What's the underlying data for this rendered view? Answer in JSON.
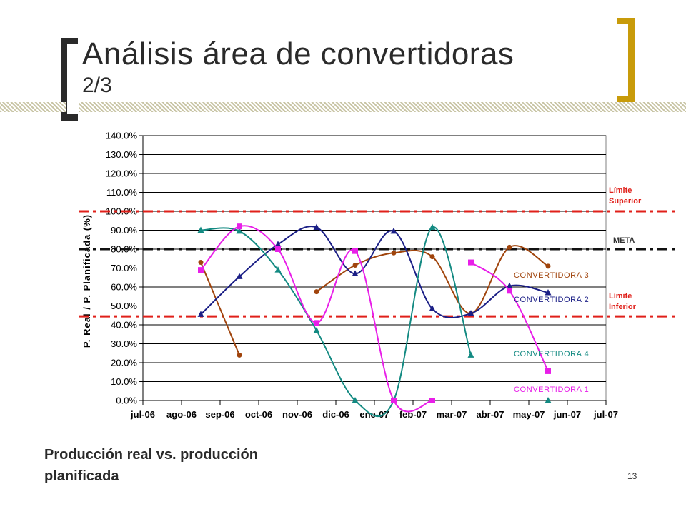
{
  "slide": {
    "title": "Análisis área de convertidoras",
    "title_sub": "2/3",
    "subtitle": "Producción real vs. producción planificada",
    "page_number": "13"
  },
  "chart_data": {
    "type": "line",
    "ylabel": "P. Real / P. Planificada (%)",
    "xlabel": "",
    "ylim": [
      0,
      140
    ],
    "yticks": [
      0,
      10,
      20,
      30,
      40,
      50,
      60,
      70,
      80,
      90,
      100,
      110,
      120,
      130,
      140
    ],
    "ytick_labels": [
      "0.0%",
      "10.0%",
      "20.0%",
      "30.0%",
      "40.0%",
      "50.0%",
      "60.0%",
      "70.0%",
      "80.0%",
      "90.0%",
      "100.0%",
      "110.0%",
      "120.0%",
      "130.0%",
      "140.0%"
    ],
    "x_categories": [
      "jul-06",
      "ago-06",
      "sep-06",
      "oct-06",
      "nov-06",
      "dic-06",
      "ene-07",
      "feb-07",
      "mar-07",
      "abr-07",
      "may-07",
      "jun-07",
      "jul-07"
    ],
    "grid": true,
    "reference_lines": [
      {
        "label": "Límite Superior",
        "value": 100,
        "color": "#e0201a"
      },
      {
        "label": "META",
        "value": 80,
        "color": "#111111"
      },
      {
        "label": "Límite Inferior",
        "value": 44.5,
        "color": "#e0201a"
      }
    ],
    "series": [
      {
        "name": "CONVERTIDORA 3",
        "color": "#a0440c",
        "marker": "circle",
        "x": [
          1.5,
          2.5,
          4.5,
          5.5,
          6.5,
          7.5,
          8.5,
          9.5,
          10.5
        ],
        "y": [
          73,
          24,
          57.5,
          71.5,
          78,
          76,
          46,
          81,
          71
        ],
        "segments": [
          [
            0,
            1
          ],
          [
            2,
            8
          ]
        ]
      },
      {
        "name": "CONVERTIDORA 2",
        "color": "#1b1f86",
        "marker": "triangle",
        "x": [
          1.5,
          2.5,
          3.5,
          4.5,
          5.5,
          6.5,
          7.5,
          8.5,
          9.5,
          10.5
        ],
        "y": [
          45.5,
          65.5,
          82.5,
          91.5,
          67,
          89.5,
          48.5,
          46,
          60.5,
          57
        ],
        "segments": [
          [
            0,
            9
          ]
        ]
      },
      {
        "name": "CONVERTIDORA 4",
        "color": "#138a82",
        "marker": "triangle",
        "x": [
          1.5,
          2.5,
          3.5,
          4.5,
          5.5,
          6.5,
          7.5,
          8.5,
          10.5
        ],
        "y": [
          90,
          89.5,
          69,
          37,
          0,
          0,
          91.5,
          24,
          0
        ],
        "segments": [
          [
            0,
            7
          ]
        ]
      },
      {
        "name": "CONVERTIDORA 1",
        "color": "#e81ee8",
        "marker": "square",
        "x": [
          1.5,
          2.5,
          3.5,
          4.5,
          5.5,
          6.5,
          7.5,
          8.5,
          9.5,
          10.5
        ],
        "y": [
          69,
          92,
          80,
          41,
          79,
          0,
          0,
          73,
          58,
          15.5
        ],
        "segments": [
          [
            0,
            6
          ],
          [
            7,
            9
          ]
        ]
      }
    ],
    "legend_labels": [
      {
        "name": "CONVERTIDORA 3",
        "at_value": 66.5
      },
      {
        "name": "CONVERTIDORA 2",
        "at_value": 53.5
      },
      {
        "name": "CONVERTIDORA 4",
        "at_value": 25
      },
      {
        "name": "CONVERTIDORA 1",
        "at_value": 6
      }
    ]
  }
}
